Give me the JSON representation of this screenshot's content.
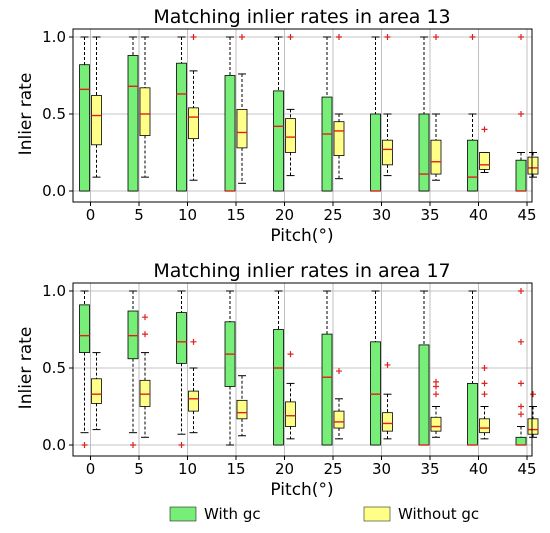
{
  "chart_data": [
    {
      "type": "boxplot",
      "title": "Matching inlier rates in area 13",
      "xlabel": "Pitch(°)",
      "ylabel": "Inlier rate",
      "ylim": [
        0,
        1
      ],
      "yticks": [
        "0.0",
        "0.5",
        "1.0"
      ],
      "categories": [
        "0",
        "5",
        "10",
        "15",
        "20",
        "25",
        "30",
        "35",
        "40",
        "45"
      ],
      "grid": true,
      "series": [
        {
          "name": "With gc",
          "color": "#77ee77",
          "boxes": [
            {
              "min": 0,
              "q1": 0,
              "median": 0.66,
              "q3": 0.82,
              "max": 1.0,
              "outliers": []
            },
            {
              "min": 0,
              "q1": 0,
              "median": 0.68,
              "q3": 0.88,
              "max": 1.0,
              "outliers": []
            },
            {
              "min": 0,
              "q1": 0,
              "median": 0.63,
              "q3": 0.83,
              "max": 1.0,
              "outliers": []
            },
            {
              "min": 0,
              "q1": 0,
              "median": 0.0,
              "q3": 0.75,
              "max": 1.0,
              "outliers": []
            },
            {
              "min": 0,
              "q1": 0,
              "median": 0.42,
              "q3": 0.65,
              "max": 1.0,
              "outliers": []
            },
            {
              "min": 0,
              "q1": 0,
              "median": 0.37,
              "q3": 0.61,
              "max": 1.0,
              "outliers": []
            },
            {
              "min": 0,
              "q1": 0,
              "median": 0.0,
              "q3": 0.5,
              "max": 1.0,
              "outliers": []
            },
            {
              "min": 0,
              "q1": 0,
              "median": 0.11,
              "q3": 0.5,
              "max": 1.0,
              "outliers": []
            },
            {
              "min": 0,
              "q1": 0,
              "median": 0.09,
              "q3": 0.33,
              "max": 0.5,
              "outliers": [
                1.0
              ]
            },
            {
              "min": 0,
              "q1": 0,
              "median": 0.0,
              "q3": 0.2,
              "max": 0.25,
              "outliers": [
                0.5,
                1.0
              ]
            }
          ]
        },
        {
          "name": "Without gc",
          "color": "#ffff88",
          "boxes": [
            {
              "min": 0.09,
              "q1": 0.3,
              "median": 0.49,
              "q3": 0.62,
              "max": 1.0,
              "outliers": []
            },
            {
              "min": 0.09,
              "q1": 0.36,
              "median": 0.5,
              "q3": 0.67,
              "max": 1.0,
              "outliers": []
            },
            {
              "min": 0.07,
              "q1": 0.34,
              "median": 0.48,
              "q3": 0.54,
              "max": 0.78,
              "outliers": [
                1.0
              ]
            },
            {
              "min": 0.05,
              "q1": 0.28,
              "median": 0.38,
              "q3": 0.53,
              "max": 0.76,
              "outliers": [
                1.0
              ]
            },
            {
              "min": 0.1,
              "q1": 0.25,
              "median": 0.35,
              "q3": 0.47,
              "max": 0.53,
              "outliers": [
                1.0
              ]
            },
            {
              "min": 0.08,
              "q1": 0.23,
              "median": 0.39,
              "q3": 0.45,
              "max": 0.5,
              "outliers": [
                1.0
              ]
            },
            {
              "min": 0.1,
              "q1": 0.17,
              "median": 0.27,
              "q3": 0.33,
              "max": 0.5,
              "outliers": [
                1.0
              ]
            },
            {
              "min": 0.07,
              "q1": 0.11,
              "median": 0.19,
              "q3": 0.33,
              "max": 0.5,
              "outliers": [
                1.0
              ]
            },
            {
              "min": 0.12,
              "q1": 0.14,
              "median": 0.17,
              "q3": 0.25,
              "max": 0.25,
              "outliers": [
                0.4
              ]
            },
            {
              "min": 0.09,
              "q1": 0.11,
              "median": 0.15,
              "q3": 0.22,
              "max": 0.25,
              "outliers": []
            }
          ]
        }
      ]
    },
    {
      "type": "boxplot",
      "title": "Matching inlier rates in area 17",
      "xlabel": "Pitch(°)",
      "ylabel": "Inlier rate",
      "ylim": [
        0,
        1
      ],
      "yticks": [
        "0.0",
        "0.5",
        "1.0"
      ],
      "categories": [
        "0",
        "5",
        "10",
        "15",
        "20",
        "25",
        "30",
        "35",
        "40",
        "45"
      ],
      "grid": true,
      "series": [
        {
          "name": "With gc",
          "color": "#77ee77",
          "boxes": [
            {
              "min": 0.08,
              "q1": 0.6,
              "median": 0.71,
              "q3": 0.91,
              "max": 1.0,
              "outliers": [
                0.0
              ]
            },
            {
              "min": 0.08,
              "q1": 0.56,
              "median": 0.71,
              "q3": 0.87,
              "max": 1.0,
              "outliers": [
                0.0
              ]
            },
            {
              "min": 0.07,
              "q1": 0.53,
              "median": 0.67,
              "q3": 0.86,
              "max": 1.0,
              "outliers": [
                0.0
              ]
            },
            {
              "min": 0,
              "q1": 0.38,
              "median": 0.59,
              "q3": 0.8,
              "max": 1.0,
              "outliers": []
            },
            {
              "min": 0,
              "q1": 0,
              "median": 0.5,
              "q3": 0.75,
              "max": 1.0,
              "outliers": []
            },
            {
              "min": 0,
              "q1": 0,
              "median": 0.44,
              "q3": 0.72,
              "max": 1.0,
              "outliers": []
            },
            {
              "min": 0,
              "q1": 0,
              "median": 0.33,
              "q3": 0.67,
              "max": 1.0,
              "outliers": []
            },
            {
              "min": 0,
              "q1": 0,
              "median": 0.0,
              "q3": 0.65,
              "max": 1.0,
              "outliers": []
            },
            {
              "min": 0,
              "q1": 0,
              "median": 0.0,
              "q3": 0.4,
              "max": 1.0,
              "outliers": []
            },
            {
              "min": 0,
              "q1": 0,
              "median": 0.0,
              "q3": 0.05,
              "max": 0.12,
              "outliers": [
                0.2,
                0.25,
                0.4,
                0.67,
                1.0
              ]
            }
          ]
        },
        {
          "name": "Without gc",
          "color": "#ffff88",
          "boxes": [
            {
              "min": 0.1,
              "q1": 0.27,
              "median": 0.33,
              "q3": 0.43,
              "max": 0.6,
              "outliers": []
            },
            {
              "min": 0.05,
              "q1": 0.25,
              "median": 0.33,
              "q3": 0.42,
              "max": 0.6,
              "outliers": [
                0.72,
                0.83
              ]
            },
            {
              "min": 0.08,
              "q1": 0.22,
              "median": 0.3,
              "q3": 0.35,
              "max": 0.5,
              "outliers": [
                0.67
              ]
            },
            {
              "min": 0.06,
              "q1": 0.17,
              "median": 0.21,
              "q3": 0.29,
              "max": 0.45,
              "outliers": []
            },
            {
              "min": 0.04,
              "q1": 0.12,
              "median": 0.19,
              "q3": 0.28,
              "max": 0.4,
              "outliers": [
                0.59
              ]
            },
            {
              "min": 0.04,
              "q1": 0.11,
              "median": 0.15,
              "q3": 0.22,
              "max": 0.3,
              "outliers": [
                0.48
              ]
            },
            {
              "min": 0.04,
              "q1": 0.09,
              "median": 0.14,
              "q3": 0.21,
              "max": 0.33,
              "outliers": [
                0.52
              ]
            },
            {
              "min": 0.05,
              "q1": 0.09,
              "median": 0.12,
              "q3": 0.18,
              "max": 0.25,
              "outliers": [
                0.33,
                0.38,
                0.41
              ]
            },
            {
              "min": 0.04,
              "q1": 0.08,
              "median": 0.11,
              "q3": 0.17,
              "max": 0.25,
              "outliers": [
                0.33,
                0.4,
                0.5
              ]
            },
            {
              "min": 0.05,
              "q1": 0.07,
              "median": 0.1,
              "q3": 0.17,
              "max": 0.25,
              "outliers": [
                0.33
              ]
            }
          ]
        }
      ]
    }
  ],
  "legend": {
    "placement": "bottom",
    "items": [
      {
        "label": "With gc",
        "color": "#77ee77"
      },
      {
        "label": "Without gc",
        "color": "#ffff88"
      }
    ]
  }
}
